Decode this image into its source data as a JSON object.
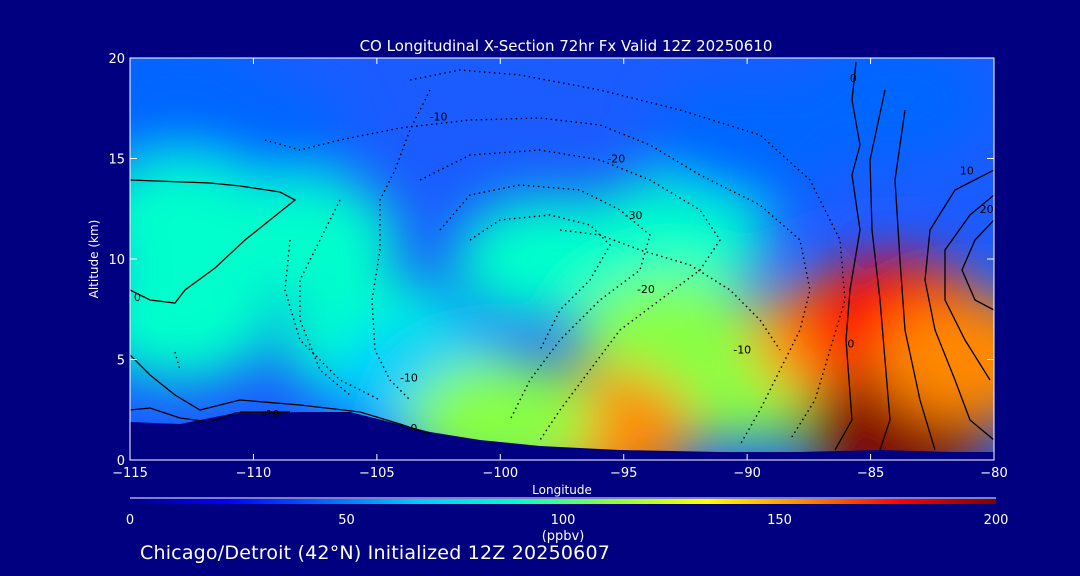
{
  "chart_data": {
    "type": "heatmap",
    "title": "CO Longitudinal X-Section 72hr  Fx Valid 12Z 20250610",
    "xlabel": "Longitude",
    "ylabel": "Altitude (km)",
    "xlim": [
      -115,
      -80
    ],
    "ylim": [
      0,
      20
    ],
    "x_ticks": [
      "−115",
      "−110",
      "−105",
      "−100",
      "−95",
      "−90",
      "−85",
      "−80"
    ],
    "y_ticks": [
      "0",
      "5",
      "10",
      "15",
      "20"
    ],
    "colorbar": {
      "label": "(ppbv)",
      "range": [
        0,
        200
      ],
      "ticks": [
        "0",
        "50",
        "100",
        "150",
        "200"
      ],
      "colors": [
        "#00008c",
        "#0000ff",
        "#0066ff",
        "#00ccff",
        "#00ffcc",
        "#88ff44",
        "#ffff00",
        "#ff8800",
        "#ff0000",
        "#800000"
      ]
    },
    "field_points": [
      {
        "lon": -113,
        "alt": 18,
        "co": 45
      },
      {
        "lon": -110,
        "alt": 16,
        "co": 55
      },
      {
        "lon": -113,
        "alt": 12,
        "co": 85
      },
      {
        "lon": -108,
        "alt": 11,
        "co": 88
      },
      {
        "lon": -113,
        "alt": 7,
        "co": 82
      },
      {
        "lon": -105,
        "alt": 6,
        "co": 80
      },
      {
        "lon": -103,
        "alt": 4,
        "co": 75
      },
      {
        "lon": -98,
        "alt": 10,
        "co": 85
      },
      {
        "lon": -93,
        "alt": 11,
        "co": 82
      },
      {
        "lon": -90,
        "alt": 16,
        "co": 55
      },
      {
        "lon": -93,
        "alt": 6,
        "co": 108
      },
      {
        "lon": -90,
        "alt": 4,
        "co": 120
      },
      {
        "lon": -96,
        "alt": 1.5,
        "co": 150
      },
      {
        "lon": -86,
        "alt": 6,
        "co": 160
      },
      {
        "lon": -84,
        "alt": 7,
        "co": 170
      },
      {
        "lon": -84,
        "alt": 1.5,
        "co": 200
      },
      {
        "lon": -81,
        "alt": 5,
        "co": 150
      },
      {
        "lon": -84,
        "alt": 18,
        "co": 45
      },
      {
        "lon": -100,
        "alt": 2,
        "co": 110
      }
    ],
    "contour_labels": [
      {
        "text": "-10",
        "lon": -102.5,
        "alt": 16.9
      },
      {
        "text": "-20",
        "lon": -95.3,
        "alt": 14.8
      },
      {
        "text": "-30",
        "lon": -94.6,
        "alt": 12.0
      },
      {
        "text": "-20",
        "lon": -94.1,
        "alt": 8.3
      },
      {
        "text": "-10",
        "lon": -90.2,
        "alt": 5.3
      },
      {
        "text": "-10",
        "lon": -103.7,
        "alt": 3.9
      },
      {
        "text": "-10",
        "lon": -109.3,
        "alt": 2.1
      },
      {
        "text": "0",
        "lon": -114.7,
        "alt": 7.9
      },
      {
        "text": "0",
        "lon": -103.5,
        "alt": 1.4
      },
      {
        "text": "0",
        "lon": -85.8,
        "alt": 5.6
      },
      {
        "text": "0",
        "lon": -85.7,
        "alt": 18.8
      },
      {
        "text": "10",
        "lon": -81.1,
        "alt": 14.2
      },
      {
        "text": "20",
        "lon": -80.3,
        "alt": 12.3
      }
    ],
    "subtitle": "Chicago/Detroit (42°N) Initialized 12Z 20250607"
  }
}
